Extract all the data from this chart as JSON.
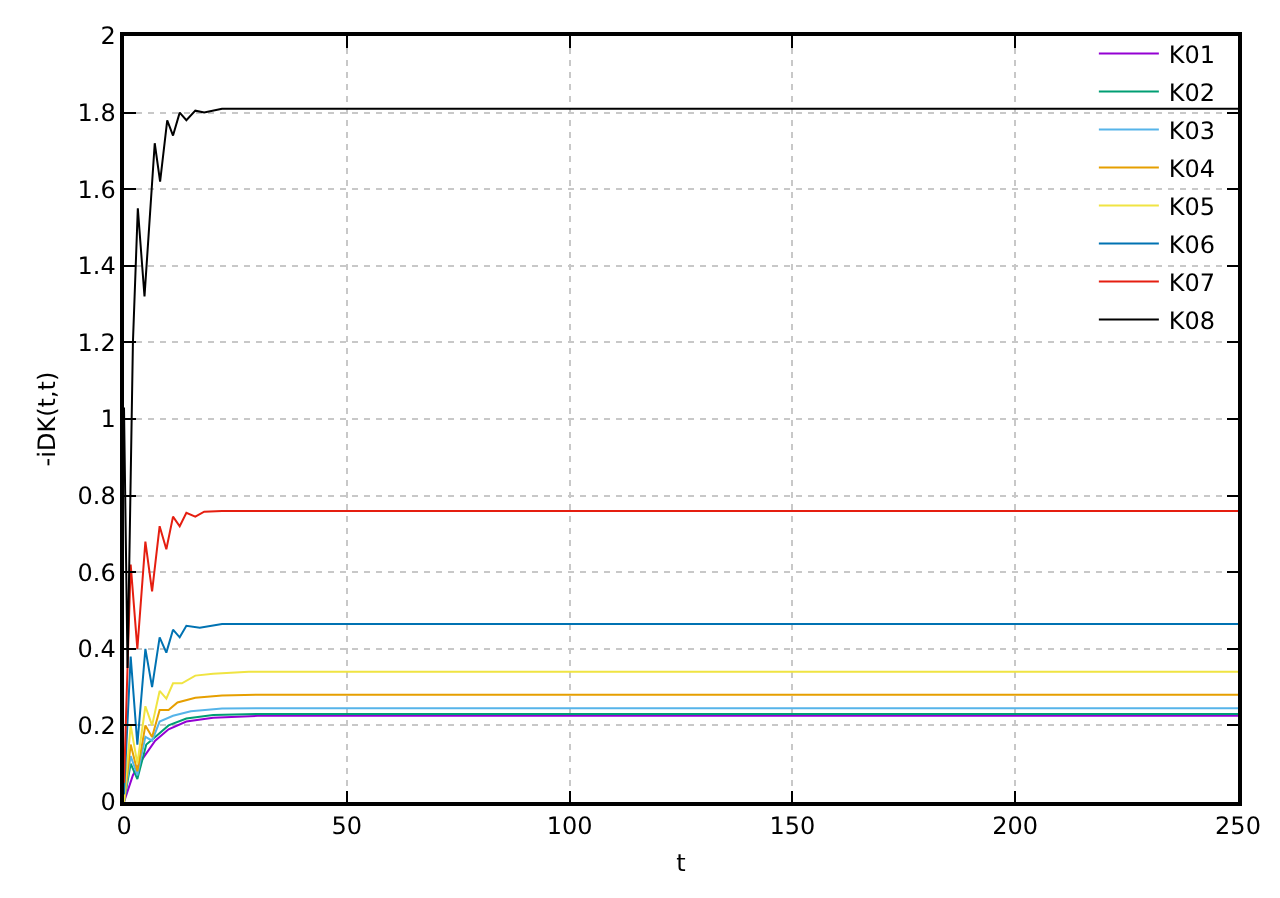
{
  "chart_data": {
    "type": "line",
    "xlabel": "t",
    "ylabel": "-iDK(t,t)",
    "xlim": [
      0,
      250
    ],
    "ylim": [
      0,
      2
    ],
    "xticks": [
      0,
      50,
      100,
      150,
      200,
      250
    ],
    "yticks": [
      0,
      0.2,
      0.4,
      0.6,
      0.8,
      1,
      1.2,
      1.4,
      1.6,
      1.8,
      2
    ],
    "grid": true,
    "legend": "top right",
    "line_style": "solid",
    "marker": "none",
    "series": [
      {
        "name": "K01",
        "color": "#9400d3",
        "x": [
          0,
          2,
          4,
          7,
          10,
          14,
          20,
          30,
          250
        ],
        "values": [
          0,
          0.07,
          0.11,
          0.16,
          0.19,
          0.21,
          0.22,
          0.225,
          0.225
        ]
      },
      {
        "name": "K02",
        "color": "#009e73",
        "x": [
          0,
          1.5,
          3,
          5,
          7,
          10,
          14,
          20,
          30,
          250
        ],
        "values": [
          0,
          0.1,
          0.06,
          0.15,
          0.17,
          0.2,
          0.218,
          0.227,
          0.23,
          0.23
        ]
      },
      {
        "name": "K03",
        "color": "#56b4e9",
        "x": [
          0,
          1.5,
          3,
          4.8,
          6.3,
          8,
          11,
          15,
          22,
          30,
          250
        ],
        "values": [
          0,
          0.12,
          0.07,
          0.17,
          0.16,
          0.21,
          0.225,
          0.237,
          0.244,
          0.245,
          0.245
        ]
      },
      {
        "name": "K04",
        "color": "#e69f00",
        "x": [
          0,
          1.5,
          3,
          4.8,
          6.3,
          8,
          10,
          12,
          16,
          22,
          30,
          250
        ],
        "values": [
          0,
          0.15,
          0.08,
          0.2,
          0.17,
          0.24,
          0.24,
          0.26,
          0.272,
          0.278,
          0.28,
          0.28
        ]
      },
      {
        "name": "K05",
        "color": "#f0e442",
        "x": [
          0,
          1.5,
          3,
          4.8,
          6.3,
          8,
          9.5,
          11,
          13,
          16,
          20,
          28,
          250
        ],
        "values": [
          0,
          0.2,
          0.1,
          0.25,
          0.2,
          0.29,
          0.27,
          0.31,
          0.31,
          0.33,
          0.335,
          0.34,
          0.34
        ]
      },
      {
        "name": "K06",
        "color": "#0072b2",
        "x": [
          0,
          1.5,
          3,
          4.8,
          6.3,
          8,
          9.5,
          11,
          12.5,
          14,
          17,
          22,
          250
        ],
        "values": [
          0.02,
          0.38,
          0.15,
          0.4,
          0.3,
          0.43,
          0.39,
          0.45,
          0.43,
          0.46,
          0.455,
          0.465,
          0.465
        ]
      },
      {
        "name": "K07",
        "color": "#e51e10",
        "x": [
          0,
          1.5,
          3,
          4.8,
          6.3,
          8,
          9.5,
          11,
          12.5,
          14,
          16,
          18,
          22,
          250
        ],
        "values": [
          0.05,
          0.62,
          0.4,
          0.68,
          0.55,
          0.72,
          0.66,
          0.745,
          0.72,
          0.755,
          0.745,
          0.758,
          0.76,
          0.76
        ]
      },
      {
        "name": "K08",
        "color": "#000000",
        "x": [
          0,
          0.8,
          2,
          3.1,
          4.6,
          6.9,
          8.1,
          9.7,
          11,
          12.5,
          14,
          16,
          18,
          22,
          250
        ],
        "values": [
          1.03,
          0.35,
          1.2,
          1.55,
          1.32,
          1.72,
          1.62,
          1.78,
          1.74,
          1.8,
          1.78,
          1.805,
          1.8,
          1.81,
          1.81
        ]
      }
    ]
  }
}
